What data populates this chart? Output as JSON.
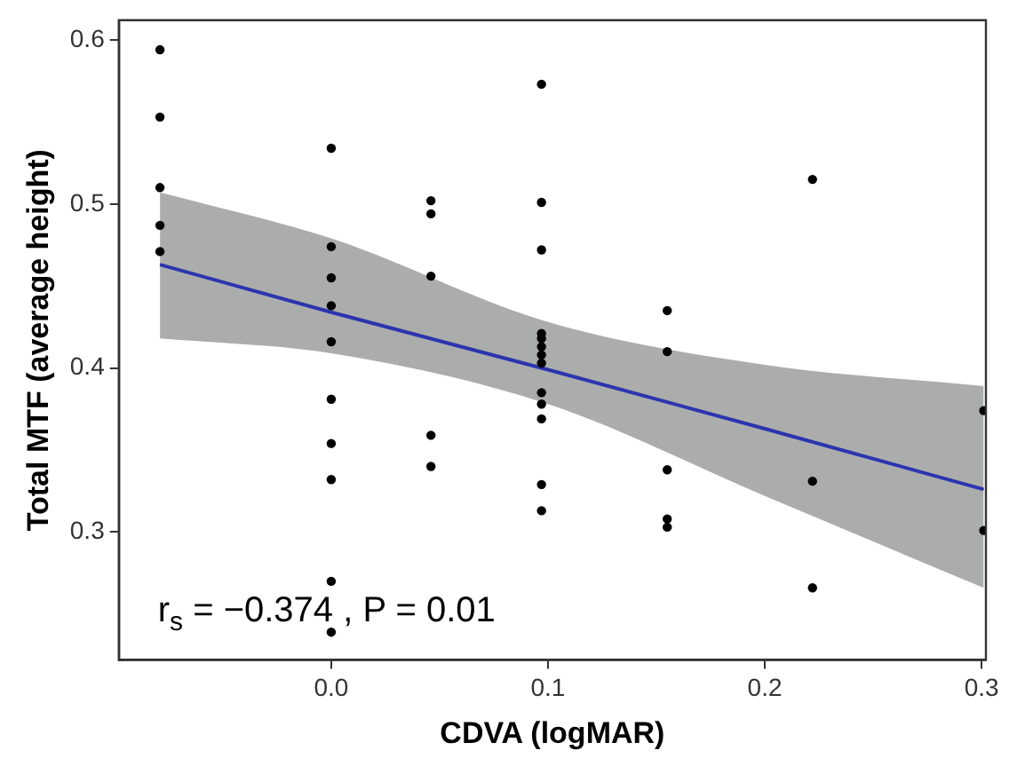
{
  "chart_data": {
    "type": "scatter",
    "xlabel": "CDVA (logMAR)",
    "ylabel": "Total MTF (average height)",
    "xlim": [
      -0.098,
      0.302
    ],
    "ylim": [
      0.222,
      0.612
    ],
    "xticks": [
      {
        "value": 0,
        "label": "0.0"
      },
      0.1,
      0.2,
      0.3
    ],
    "yticks": [
      0.3,
      0.4,
      0.5,
      0.6
    ],
    "grid": false,
    "legend": false,
    "annotations": [
      "r$_{s}$ = −0.374 , P = 0.01"
    ],
    "series": [
      {
        "marker": "circle",
        "color": "#000000",
        "x": [
          -0.079,
          -0.079,
          -0.079,
          -0.079,
          -0.079,
          0,
          0,
          0,
          0,
          0,
          0,
          0,
          0,
          0,
          0,
          0.046,
          0.046,
          0.046,
          0.046,
          0.046,
          0.097,
          0.097,
          0.097,
          0.097,
          0.097,
          0.097,
          0.097,
          0.097,
          0.097,
          0.097,
          0.097,
          0.097,
          0.097,
          0.155,
          0.155,
          0.155,
          0.155,
          0.155,
          0.222,
          0.222,
          0.222,
          0.301,
          0.301
        ],
        "values": [
          0.594,
          0.553,
          0.51,
          0.487,
          0.471,
          0.534,
          0.474,
          0.455,
          0.438,
          0.416,
          0.381,
          0.354,
          0.332,
          0.27,
          0.239,
          0.502,
          0.494,
          0.456,
          0.359,
          0.34,
          0.573,
          0.501,
          0.472,
          0.421,
          0.418,
          0.413,
          0.408,
          0.403,
          0.385,
          0.378,
          0.369,
          0.329,
          0.313,
          0.435,
          0.41,
          0.338,
          0.308,
          0.303,
          0.515,
          0.331,
          0.266,
          0.374,
          0.301
        ]
      },
      {
        "type": "line",
        "marker": "none",
        "color": "#2b35af",
        "x": [
          -0.079,
          0,
          0.1,
          0.2,
          0.301
        ],
        "values": [
          0.463,
          0.434,
          0.399,
          0.363,
          0.326
        ],
        "lower": [
          0.418,
          0.409,
          0.378,
          0.322,
          0.266
        ],
        "upper": [
          0.507,
          0.479,
          0.428,
          0.402,
          0.389
        ]
      }
    ]
  }
}
